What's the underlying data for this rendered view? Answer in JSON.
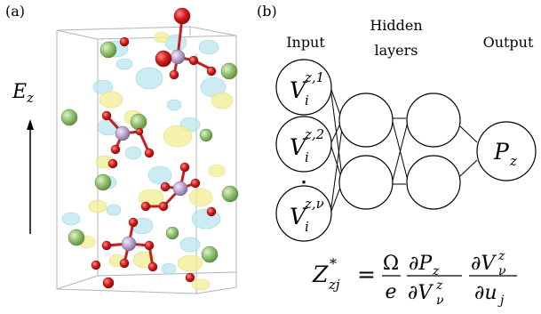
{
  "panel_a": {
    "label": "(a)",
    "field": {
      "symbol": "E",
      "subscript": "z"
    }
  },
  "panel_b": {
    "label": "(b)",
    "headers": {
      "input": "Input",
      "hidden_line1": "Hidden",
      "hidden_line2": "layers",
      "output": "Output"
    },
    "input_nodes": [
      {
        "base": "V",
        "sub": "i",
        "sup": "z,1"
      },
      {
        "base": "V",
        "sub": "i",
        "sup": "z,2"
      },
      {
        "base": "V",
        "sub": "i",
        "sup": "z,ν"
      }
    ],
    "ellipsis": "⋮",
    "output_node": {
      "base": "P",
      "sub": "z"
    },
    "formula": {
      "lhs_base": "Z",
      "lhs_sup": "*",
      "lhs_sub": "zj",
      "equals": "=",
      "f1_num": "Ω",
      "f1_den": "e",
      "f2_num": "∂P",
      "f2_num_sub": "z",
      "f2_den": "∂V",
      "f2_den_sub": "ν",
      "f2_den_sup": "z",
      "f3_num": "∂V",
      "f3_num_sub": "ν",
      "f3_num_sup": "z",
      "f3_den": "∂u",
      "f3_den_sub": "j"
    }
  },
  "colors": {
    "halogen_green": "#8fbf6a",
    "oxygen_red": "#d01818",
    "metal_lavender": "#b9a3cc",
    "isosurface_cyan": "#b8e6ee",
    "isosurface_yellow": "#f3ef9c",
    "bond_red": "#c42020",
    "box_gray": "#b5b5b5"
  }
}
